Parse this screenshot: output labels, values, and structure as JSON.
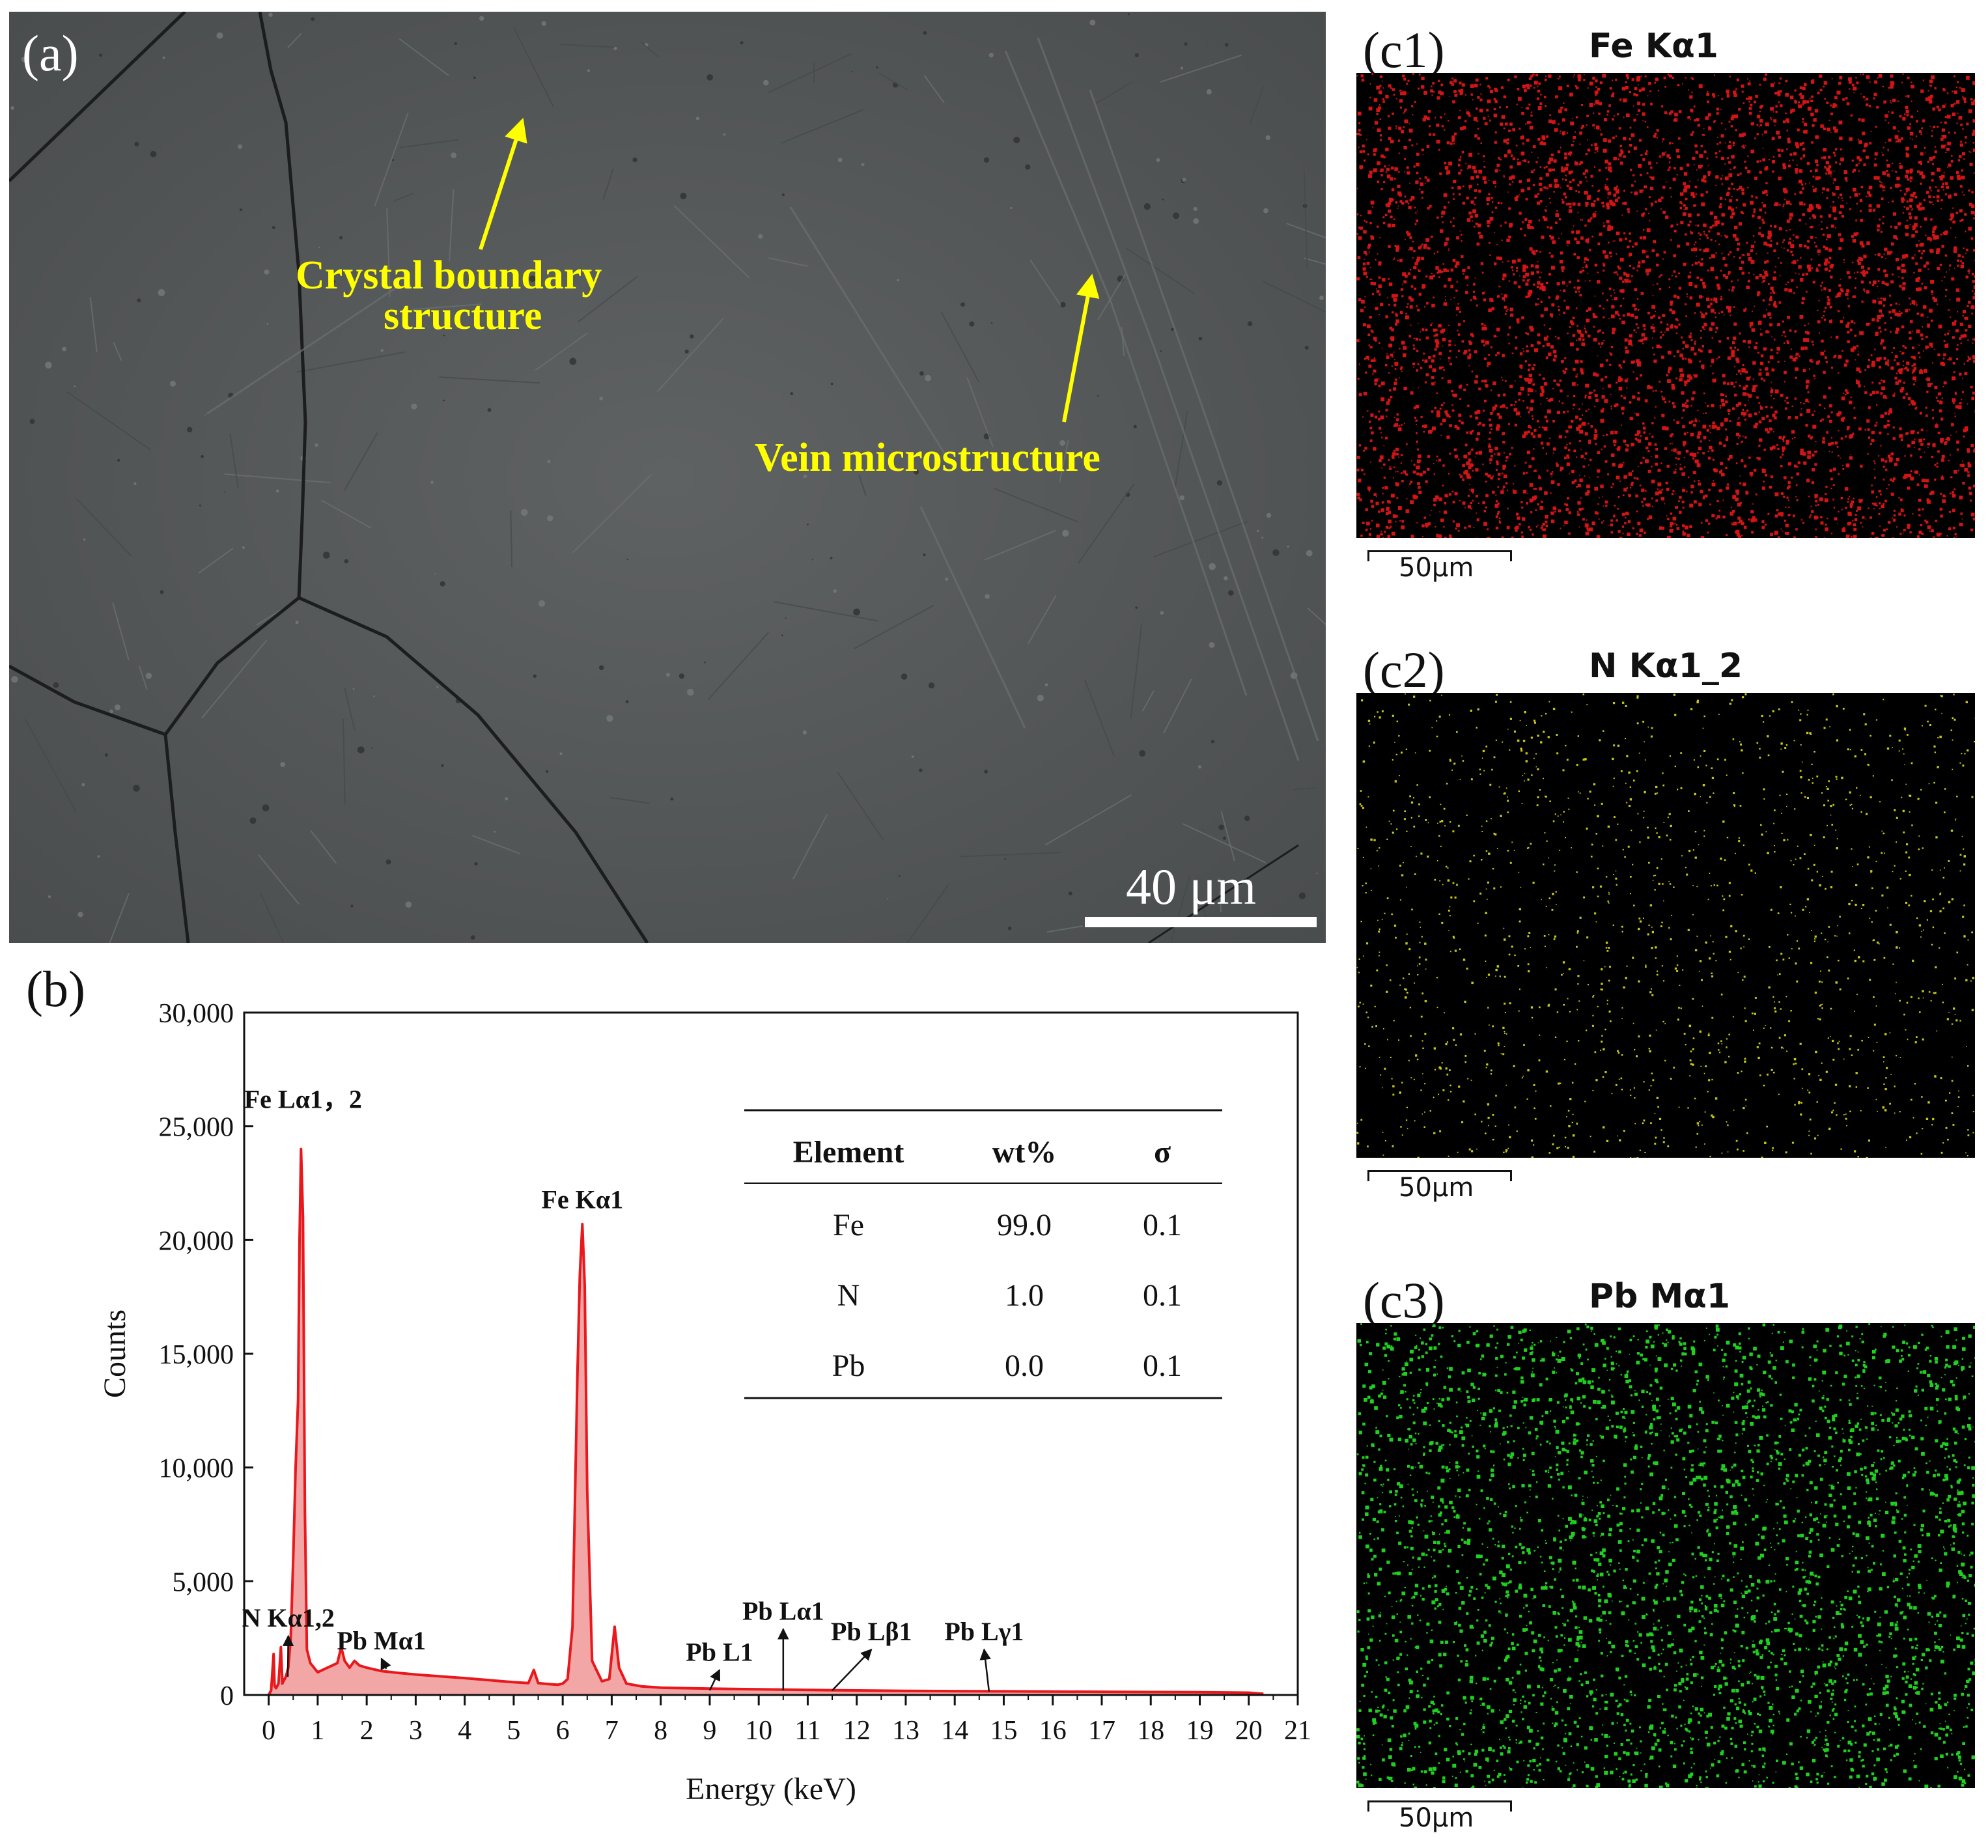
{
  "panel_a": {
    "label": "(a)",
    "annotation_boundary_line1": "Crystal boundary",
    "annotation_boundary_line2": "structure",
    "annotation_vein": "Vein microstructure",
    "scale_bar": "40 μm"
  },
  "panel_b": {
    "label": "(b)"
  },
  "maps": [
    {
      "label": "(c1)",
      "title": "Fe Kα1",
      "scale": "50μm",
      "color": "#d41414"
    },
    {
      "label": "(c2)",
      "title": "N Kα1_2",
      "scale": "50μm",
      "color": "#c8c814"
    },
    {
      "label": "(c3)",
      "title": "Pb Mα1",
      "scale": "50μm",
      "color": "#20d020"
    }
  ],
  "colors": {
    "spectrum_line": "#e8181c",
    "spectrum_fill": "#f3a6a6",
    "annotation": "#ffff00"
  },
  "chart_data": {
    "type": "area",
    "xlabel": "Energy (keV)",
    "ylabel": "Counts",
    "xlim": [
      -0.5,
      21
    ],
    "ylim": [
      0,
      30000
    ],
    "xticks": [
      0,
      1,
      2,
      3,
      4,
      5,
      6,
      7,
      8,
      9,
      10,
      11,
      12,
      13,
      14,
      15,
      16,
      17,
      18,
      19,
      20,
      21
    ],
    "yticks": [
      {
        "value": 0,
        "label": "0"
      },
      {
        "value": 5000,
        "label": "5,000"
      },
      {
        "value": 10000,
        "label": "10,000"
      },
      {
        "value": 15000,
        "label": "15,000"
      },
      {
        "value": 20000,
        "label": "20,000"
      },
      {
        "value": 25000,
        "label": "25,000"
      },
      {
        "value": 30000,
        "label": "30,000"
      }
    ],
    "spectrum": {
      "x": [
        0,
        0.05,
        0.1,
        0.12,
        0.15,
        0.2,
        0.25,
        0.28,
        0.3,
        0.35,
        0.4,
        0.45,
        0.5,
        0.55,
        0.6,
        0.63,
        0.66,
        0.7,
        0.74,
        0.78,
        0.85,
        1.0,
        1.2,
        1.4,
        1.48,
        1.55,
        1.65,
        1.75,
        1.85,
        2.0,
        2.3,
        2.6,
        3.0,
        3.5,
        4.0,
        4.5,
        5.0,
        5.3,
        5.41,
        5.5,
        5.7,
        5.9,
        6.0,
        6.1,
        6.2,
        6.3,
        6.35,
        6.4,
        6.45,
        6.5,
        6.6,
        6.8,
        6.95,
        7.06,
        7.15,
        7.3,
        7.6,
        8.0,
        9.0,
        10.0,
        11.0,
        12.0,
        13.0,
        14.0,
        15.0,
        16.0,
        17.0,
        18.0,
        19.0,
        20.0,
        20.3
      ],
      "y": [
        0,
        200,
        1800,
        400,
        300,
        500,
        2100,
        500,
        600,
        800,
        1200,
        2500,
        6000,
        10000,
        13000,
        20000,
        24000,
        21000,
        8000,
        2000,
        1400,
        1000,
        1200,
        1400,
        2100,
        1500,
        1200,
        1500,
        1300,
        1200,
        1050,
        980,
        900,
        820,
        740,
        650,
        560,
        520,
        1100,
        520,
        480,
        450,
        500,
        700,
        3000,
        14000,
        18500,
        20700,
        18000,
        9000,
        1500,
        600,
        700,
        3000,
        1200,
        500,
        380,
        320,
        280,
        250,
        220,
        200,
        180,
        170,
        160,
        150,
        140,
        130,
        120,
        100,
        50
      ]
    },
    "peak_labels": [
      {
        "text": "Fe Lα1，2",
        "x": 0.7,
        "y": 25800
      },
      {
        "text": "Fe Kα1",
        "x": 6.4,
        "y": 21400
      },
      {
        "text": "N Kα1,2",
        "x": 0.4,
        "y": 3000,
        "arrow_to": [
          0.39,
          800
        ]
      },
      {
        "text": "Pb Mα1",
        "x": 2.3,
        "y": 2000,
        "arrow_to": [
          2.4,
          1150
        ]
      },
      {
        "text": "Pb L1",
        "x": 9.2,
        "y": 1500,
        "arrow_to": [
          9.0,
          200
        ]
      },
      {
        "text": "Pb Lα1",
        "x": 10.5,
        "y": 3300,
        "arrow_to": [
          10.5,
          200
        ]
      },
      {
        "text": "Pb Lβ1",
        "x": 12.3,
        "y": 2400,
        "arrow_to": [
          11.5,
          200
        ]
      },
      {
        "text": "Pb Lγ1",
        "x": 14.6,
        "y": 2400,
        "arrow_to": [
          14.7,
          150
        ]
      }
    ],
    "table": {
      "headers": [
        "Element",
        "wt%",
        "σ"
      ],
      "rows": [
        [
          "Fe",
          "99.0",
          "0.1"
        ],
        [
          "N",
          "1.0",
          "0.1"
        ],
        [
          "Pb",
          "0.0",
          "0.1"
        ]
      ]
    }
  }
}
